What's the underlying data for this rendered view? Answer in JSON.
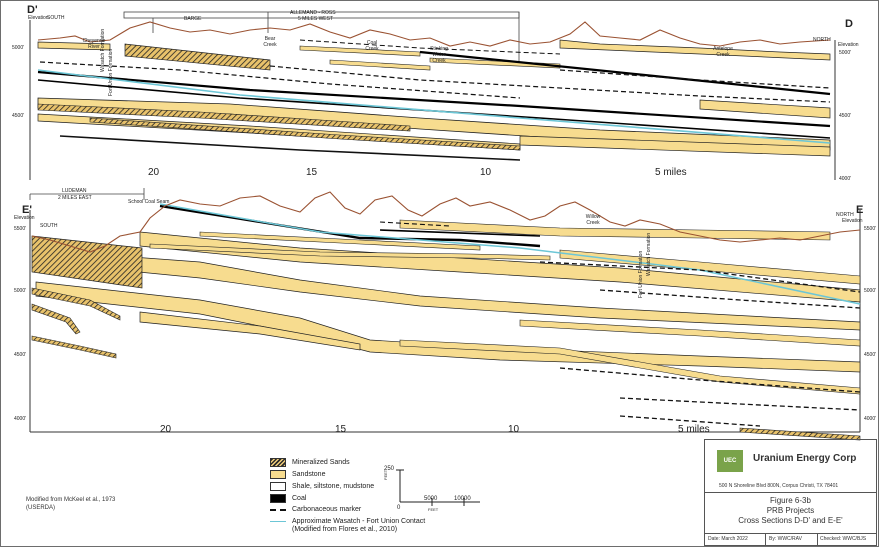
{
  "section_top": {
    "left_label": "D'",
    "right_label": "D",
    "left_elev_caption": "Elevation",
    "left_direction": "SOUTH",
    "right_direction": "NORTH",
    "right_elev_caption": "Elevation",
    "map_labels": [
      "BARGE",
      "ALLEMAND - ROSS",
      "5 MILES WEST"
    ],
    "place_labels": [
      "Cheyenne River",
      "Bear Creek",
      "Coal Creek",
      "Stinking Water Creek",
      "Antelope Creek"
    ],
    "elev_left": [
      "5000'",
      "4500'"
    ],
    "elev_right": [
      "5000'",
      "4500'",
      "4000'"
    ],
    "formation_left": [
      "Wasatch Formation",
      "Fort Union Formation"
    ],
    "scale_numbers": [
      "20",
      "15",
      "10",
      "5 miles"
    ]
  },
  "section_bottom": {
    "left_label": "E'",
    "right_label": "E",
    "left_elev_caption": "Elevation",
    "left_direction": "SOUTH",
    "right_direction": "NORTH",
    "right_elev_caption": "Elevation",
    "map_labels": [
      "LUDEMAN",
      "2 MILES EAST"
    ],
    "place_labels": [
      "School Coal Seam",
      "Willow Creek"
    ],
    "elev_left": [
      "5500'",
      "5000'",
      "4500'",
      "4000'"
    ],
    "elev_right": [
      "5500'",
      "5000'",
      "4500'",
      "4000'"
    ],
    "formation_right": [
      "Wasatch Formation",
      "Fort Union Formation"
    ],
    "scale_numbers": [
      "20",
      "15",
      "10",
      "5 miles"
    ]
  },
  "legend": {
    "items": [
      "Mineralized Sands",
      "Sandstone",
      "Shale, siltstone, mudstone",
      "Coal",
      "Carbonaceous marker",
      "Approximate Wasatch - Fort Union Contact",
      "(Modified from Flores et al., 2010)"
    ]
  },
  "scale_bar": {
    "vertical_value": "250",
    "unit_vertical": "FEET",
    "zero": "0",
    "h1": "5000",
    "h2": "10000",
    "unit_horizontal": "FEET"
  },
  "note": {
    "line1": "Modified from McKeel et al., 1973",
    "line2": "(USERDA)"
  },
  "title_block": {
    "logo_text": "UEC",
    "company": "Uranium Energy Corp",
    "address": "500 N Shoreline Blvd 800N, Corpus Christi, TX 78401",
    "figure": "Figure 6-3b",
    "project": "PRB Projects",
    "title": "Cross Sections D-D' and E-E'",
    "date": "Date: March 2022",
    "by": "By: WWC/RAV",
    "checked": "Checked: WWC/BJS"
  },
  "colors": {
    "sandstone": "#f7dc8f",
    "topography": "#9a5232",
    "contact": "#6cc6d6",
    "coal": "#000000",
    "logo": "#7aa34a"
  }
}
